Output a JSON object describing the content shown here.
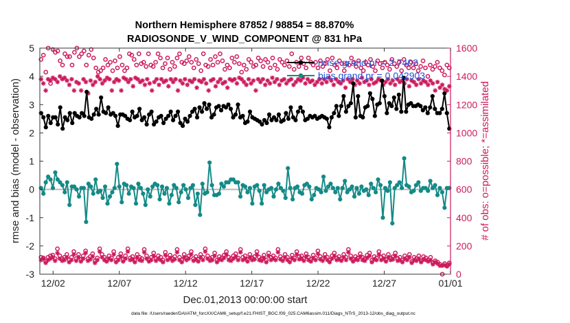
{
  "chart_data": {
    "type": "line",
    "title_line1": "Northern Hemisphere 87852 / 98854 = 88.870%",
    "title_line2": "RADIOSONDE_V_WIND_COMPONENT @ 831 hPa",
    "xlabel": "Dec.01,2013 00:00:00 start",
    "ylabel_left": "rmse and bias (model - observation)",
    "ylabel_right": "# of obs: o=possible; *=assimilated",
    "footer": "data file: /Users/raeder/DAI/ATM_forcXX/CAM6_setup/f.e21.FHIST_BGC.f09_025.CAM6assim.011/Diags_NTrS_2013-12/obs_diag_output.nc",
    "xlim": [
      0.5,
      31.5
    ],
    "ylim_left": [
      -3,
      5
    ],
    "ylim_right": [
      0,
      1600
    ],
    "x_ticks": [
      1.5,
      6.5,
      11.5,
      16.5,
      21.5,
      26.5,
      31.5
    ],
    "x_tick_labels": [
      "12/02",
      "12/07",
      "12/12",
      "12/17",
      "12/22",
      "12/27",
      "01/01"
    ],
    "y_left_ticks": [
      5,
      4,
      3,
      2,
      1,
      0,
      -1,
      -2,
      -3
    ],
    "y_right_ticks": [
      1600,
      1400,
      1200,
      1000,
      800,
      600,
      400,
      200,
      0
    ],
    "zero_line": 0,
    "colors": {
      "rmse": "#000000",
      "bias": "#138a87",
      "obs": "#cc1a5c",
      "zero": "#b8b8b8",
      "legend_text": "#1f4fd6"
    },
    "legend": [
      {
        "label": "rmse grand pr = 2.7402"
      },
      {
        "label": "bias grand pr = 0.042903"
      }
    ],
    "rmse": [
      2.7,
      2.55,
      2.2,
      2.6,
      2.35,
      2.55,
      2.55,
      2.3,
      2.9,
      2.15,
      2.55,
      2.45,
      2.7,
      2.35,
      2.7,
      2.6,
      2.55,
      2.7,
      2.6,
      3.45,
      2.55,
      2.5,
      2.65,
      2.85,
      2.65,
      3.25,
      2.75,
      2.7,
      2.9,
      2.65,
      2.7,
      2.6,
      2.25,
      2.65,
      2.65,
      2.6,
      2.5,
      2.45,
      2.75,
      2.55,
      2.6,
      2.85,
      2.45,
      2.55,
      2.3,
      2.65,
      2.75,
      2.3,
      2.4,
      2.55,
      2.6,
      2.35,
      2.5,
      2.6,
      2.75,
      2.45,
      2.6,
      2.75,
      2.35,
      2.25,
      2.5,
      2.4,
      2.6,
      2.75,
      2.85,
      2.55,
      2.9,
      2.75,
      3.05,
      2.85,
      3.0,
      2.55,
      2.65,
      2.9,
      2.95,
      2.8,
      2.95,
      2.9,
      3.0,
      2.85,
      2.55,
      2.65,
      3.0,
      2.55,
      2.6,
      2.35,
      2.4,
      2.75,
      2.55,
      2.5,
      2.45,
      2.4,
      2.3,
      2.45,
      2.35,
      2.65,
      2.45,
      2.55,
      2.45,
      2.65,
      2.4,
      2.45,
      2.7,
      2.5,
      2.9,
      2.55,
      2.45,
      2.75,
      2.9,
      2.75,
      2.45,
      2.5,
      2.6,
      2.55,
      2.6,
      2.5,
      2.55,
      2.6,
      2.55,
      2.5,
      2.2,
      2.55,
      2.7,
      2.95,
      2.6,
      2.95,
      3.3,
      2.75,
      2.95,
      3.05,
      3.75,
      2.55,
      3.3,
      2.6,
      2.55,
      2.9,
      2.95,
      3.4,
      3.2,
      2.6,
      3.0,
      3.05,
      3.85,
      3.3,
      2.7,
      3.05,
      2.95,
      3.25,
      2.85,
      3.35,
      2.75,
      3.95,
      2.75,
      3.0,
      3.05,
      2.95,
      2.95,
      3.0,
      2.95,
      2.8,
      2.9,
      2.7,
      2.9,
      3.3,
      2.85,
      2.7,
      2.7,
      2.85,
      3.4,
      2.7,
      2.15
    ],
    "bias": [
      0.05,
      -0.15,
      0.25,
      0.45,
      0.35,
      0.05,
      0.6,
      0.35,
      0.25,
      0.15,
      -0.1,
      0.25,
      -0.55,
      0.1,
      0.1,
      0.0,
      -0.25,
      0.05,
      0.05,
      -1.15,
      0.2,
      0.1,
      -0.15,
      0.35,
      -0.1,
      -0.05,
      -0.3,
      0.1,
      -0.5,
      -0.25,
      -0.1,
      0.05,
      0.9,
      0.1,
      -0.45,
      0.2,
      0.15,
      -0.15,
      0.1,
      0.05,
      -0.5,
      0.2,
      0.05,
      -0.15,
      -0.55,
      0.0,
      -0.25,
      0.1,
      0.2,
      0.15,
      -0.35,
      0.1,
      -0.15,
      0.05,
      -0.5,
      -0.2,
      0.15,
      0.05,
      -0.45,
      -0.1,
      0.15,
      0.0,
      -0.3,
      0.05,
      0.15,
      -0.55,
      -0.15,
      -0.9,
      0.2,
      -0.15,
      -0.1,
      0.95,
      0.15,
      -0.2,
      -0.2,
      -0.15,
      0.2,
      0.1,
      0.25,
      0.25,
      0.35,
      0.35,
      0.25,
      0.25,
      -0.25,
      0.15,
      0.1,
      -0.1,
      0.05,
      -0.5,
      0.1,
      0.15,
      -0.05,
      -0.5,
      0.15,
      -0.1,
      0.0,
      0.05,
      -0.25,
      0.0,
      0.2,
      0.05,
      -0.05,
      -0.3,
      0.75,
      0.05,
      -0.35,
      0.05,
      0.1,
      -0.1,
      -0.15,
      0.15,
      0.2,
      0.1,
      -0.35,
      -0.2,
      0.05,
      0.0,
      -0.1,
      0.45,
      -0.05,
      0.1,
      0.2,
      0.05,
      -0.1,
      0.05,
      -0.35,
      0.05,
      0.3,
      -0.1,
      0.0,
      0.1,
      -0.25,
      0.05,
      -0.15,
      0.1,
      -0.05,
      0.0,
      -0.2,
      0.2,
      0.05,
      -0.1,
      0.35,
      0.15,
      -1.0,
      0.05,
      -0.05,
      0.25,
      -1.2,
      0.05,
      0.15,
      0.25,
      0.05,
      1.1,
      0.15,
      0.1,
      -0.1,
      -0.05,
      0.15,
      0.25,
      -0.05,
      0.05,
      0.05,
      -0.05,
      0.3,
      0.05,
      0.15,
      -0.2,
      0.05,
      -0.1,
      -0.65,
      0.05,
      0.05
    ],
    "obs_possible": [
      1520,
      1550,
      1430,
      1600,
      1350,
      1590,
      1570,
      1580,
      1510,
      1480,
      1560,
      1540,
      1540,
      1480,
      1570,
      1600,
      1540,
      1560,
      1580,
      1480,
      1550,
      1590,
      1530,
      1460,
      1430,
      1440,
      1460,
      1520,
      1480,
      1500,
      1440,
      1510,
      1460,
      1540,
      1480,
      1440,
      1460,
      1560,
      1550,
      1520,
      1480,
      1560,
      1490,
      1500,
      1470,
      1560,
      1480,
      1470,
      1500,
      1560,
      1530,
      1460,
      1490,
      1530,
      1450,
      1500,
      1470,
      1530,
      1560,
      1500,
      1490,
      1510,
      1540,
      1500,
      1460,
      1520,
      1490,
      1440,
      1560,
      1480,
      1470,
      1520,
      1480,
      1540,
      1500,
      1560,
      1510,
      1450,
      1480,
      1460,
      1530,
      1500,
      1540,
      1490,
      1430,
      1480,
      1450,
      1520,
      1500,
      1470,
      1480,
      1530,
      1510,
      1470,
      1520,
      1500,
      1460,
      1530,
      1480,
      1450,
      1520,
      1500,
      1480,
      1510,
      1470,
      1560,
      1450,
      1500,
      1470,
      1530,
      1490,
      1460,
      1530,
      1500,
      1480,
      1500,
      1460,
      1510,
      1470,
      1490,
      1520,
      1440,
      1530,
      1480,
      1460,
      1510,
      1490,
      1440,
      1490,
      1480,
      1530,
      1500,
      1470,
      1510,
      1460,
      1440,
      1500,
      1480,
      1520,
      1470,
      1440,
      1510,
      1490,
      1460,
      1500,
      1480,
      1450,
      1520,
      1490,
      1470,
      1500,
      1440,
      1520,
      1480,
      1460,
      1500,
      1460,
      1490,
      1440,
      1470,
      1510,
      1460,
      1400,
      1480,
      1450,
      1470,
      1500,
      1460,
      1440,
      1410,
      1480,
      1460
    ],
    "obs_assimilated": [
      1380,
      1350,
      1300,
      1380,
      1370,
      1390,
      1380,
      1360,
      1400,
      1380,
      1390,
      1370,
      1340,
      1380,
      1300,
      1360,
      1350,
      1300,
      1380,
      1360,
      1280,
      1370,
      1340,
      1360,
      1400,
      1380,
      1350,
      1370,
      1390,
      1380,
      1300,
      1360,
      1380,
      1370,
      1300,
      1390,
      1380,
      1360,
      1380,
      1330,
      1390,
      1380,
      1360,
      1370,
      1340,
      1380,
      1350,
      1300,
      1360,
      1380,
      1340,
      1380,
      1360,
      1370,
      1330,
      1380,
      1360,
      1380,
      1300,
      1370,
      1350,
      1380,
      1340,
      1370,
      1360,
      1380,
      1320,
      1370,
      1360,
      1380,
      1350,
      1300,
      1370,
      1380,
      1330,
      1360,
      1380,
      1350,
      1360,
      1320,
      1380,
      1370,
      1380,
      1350,
      1390,
      1380,
      1360,
      1340,
      1380,
      1350,
      1370,
      1300,
      1380,
      1360,
      1380,
      1340,
      1370,
      1350,
      1390,
      1360,
      1380,
      1340,
      1370,
      1380,
      1350,
      1370,
      1380,
      1340,
      1360,
      1380,
      1370,
      1390,
      1350,
      1380,
      1360,
      1370,
      1340,
      1360,
      1380,
      1350,
      1380,
      1360,
      1390,
      1370,
      1340,
      1380,
      1360,
      1350,
      1370,
      1320,
      1380,
      1360,
      1380,
      1340,
      1370,
      1350,
      1390,
      1360,
      1370,
      1340,
      1380,
      1350,
      1360,
      1380,
      1370,
      1340,
      1360,
      1380,
      1350,
      1370,
      1340,
      1380,
      1360,
      1370,
      1350,
      1380,
      1330,
      1370,
      1360,
      1340,
      1380,
      1350,
      1370,
      1360,
      1340,
      1370,
      1350,
      1300,
      1360,
      1320,
      1340,
      1310,
      1300,
      1330
    ],
    "obs_possible_low": [
      120,
      115,
      90,
      120,
      130,
      135,
      110,
      180,
      130,
      110,
      120,
      140,
      100,
      120,
      160,
      110,
      140,
      105,
      130,
      165,
      110,
      125,
      145,
      95,
      115,
      180,
      140,
      120,
      105,
      130,
      115,
      160,
      100,
      120,
      145,
      105,
      130,
      180,
      115,
      125,
      100,
      140,
      120,
      110,
      175,
      130,
      105,
      120,
      150,
      110,
      130,
      120,
      100,
      155,
      115,
      135,
      110,
      125,
      175,
      120,
      100,
      140,
      115,
      130,
      160,
      110,
      125,
      105,
      140,
      120,
      180,
      130,
      110,
      120,
      150,
      100,
      125,
      115,
      135,
      160,
      120,
      110,
      130,
      145,
      115,
      175,
      120,
      130,
      105,
      140,
      115,
      125,
      160,
      120,
      110,
      135,
      100,
      150,
      120,
      130,
      115,
      175,
      125,
      110,
      140,
      120,
      100,
      135,
      115,
      160,
      125,
      130,
      110,
      145,
      120,
      105,
      135,
      115,
      165,
      125,
      110,
      140,
      120,
      100,
      130,
      150,
      115,
      125,
      110,
      140,
      120,
      175,
      130,
      105,
      125,
      115,
      145,
      120,
      110,
      135,
      150,
      100,
      125,
      115,
      160,
      120,
      130,
      105,
      140,
      115,
      125,
      150,
      110,
      120,
      100,
      130,
      115,
      140,
      90,
      120,
      110,
      130,
      95,
      125,
      115,
      100,
      120,
      80,
      95,
      85,
      70,
      0,
      75,
      60,
      80
    ],
    "obs_assimilated_low": [
      100,
      110,
      80,
      100,
      110,
      120,
      95,
      150,
      110,
      95,
      100,
      120,
      85,
      100,
      140,
      95,
      120,
      90,
      110,
      150,
      95,
      105,
      125,
      80,
      100,
      160,
      120,
      100,
      90,
      110,
      100,
      140,
      85,
      100,
      125,
      90,
      110,
      160,
      100,
      105,
      85,
      120,
      100,
      95,
      155,
      110,
      90,
      100,
      130,
      95,
      110,
      100,
      85,
      135,
      100,
      115,
      95,
      105,
      155,
      100,
      85,
      120,
      100,
      110,
      140,
      95,
      105,
      90,
      120,
      100,
      160,
      110,
      95,
      100,
      130,
      85,
      105,
      100,
      115,
      140,
      100,
      95,
      110,
      125,
      100,
      155,
      100,
      110,
      90,
      120,
      100,
      105,
      140,
      100,
      95,
      115,
      85,
      130,
      100,
      110,
      100,
      155,
      105,
      95,
      120,
      100,
      85,
      115,
      100,
      140,
      105,
      110,
      95,
      125,
      100,
      90,
      115,
      100,
      145,
      105,
      95,
      120,
      100,
      85,
      110,
      130,
      100,
      105,
      95,
      120,
      100,
      155,
      110,
      90,
      105,
      100,
      125,
      100,
      95,
      115,
      130,
      85,
      105,
      100,
      140,
      100,
      110,
      90,
      120,
      100,
      105,
      130,
      95,
      100,
      85,
      110,
      100,
      120,
      80,
      100,
      95,
      110,
      85,
      105,
      100,
      90,
      100,
      70,
      85,
      75,
      60,
      60,
      65,
      55,
      70
    ]
  }
}
